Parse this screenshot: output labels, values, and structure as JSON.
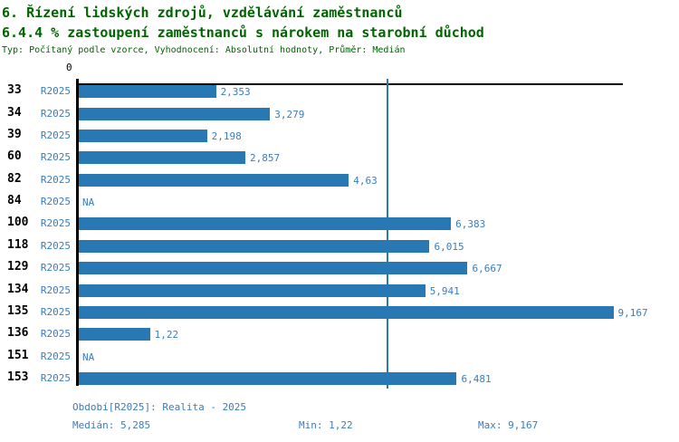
{
  "header": {
    "title1": "6. Řízení lidských zdrojů, vzdělávání zaměstnanců",
    "title2": "6.4.4 % zastoupení zaměstnanců s nárokem na starobní důchod",
    "subtitle": "Typ: Počítaný podle vzorce, Vyhodnocení: Absolutní hodnoty, Průměr: Medián"
  },
  "colors": {
    "title": "#006400",
    "blue": "#3a7cbe",
    "bar": "#2878b4",
    "axis": "#000000"
  },
  "axis": {
    "zero_label": "0"
  },
  "chart_data": {
    "type": "bar",
    "orientation": "horizontal",
    "title": "6.4.4 % zastoupení zaměstnanců s nárokem na starobní důchod",
    "xlabel": "",
    "ylabel": "",
    "xlim": [
      0,
      9.33
    ],
    "grid": false,
    "legend": false,
    "categories": [
      "33",
      "34",
      "39",
      "60",
      "82",
      "84",
      "100",
      "118",
      "129",
      "134",
      "135",
      "136",
      "151",
      "153"
    ],
    "series": [
      {
        "name": "R2025",
        "values": [
          2.353,
          3.279,
          2.198,
          2.857,
          4.63,
          null,
          6.383,
          6.015,
          6.667,
          5.941,
          9.167,
          1.22,
          null,
          6.481
        ]
      }
    ],
    "rows": [
      {
        "id": "33",
        "period": "R2025",
        "value": 2.353,
        "label": "2,353"
      },
      {
        "id": "34",
        "period": "R2025",
        "value": 3.279,
        "label": "3,279"
      },
      {
        "id": "39",
        "period": "R2025",
        "value": 2.198,
        "label": "2,198"
      },
      {
        "id": "60",
        "period": "R2025",
        "value": 2.857,
        "label": "2,857"
      },
      {
        "id": "82",
        "period": "R2025",
        "value": 4.63,
        "label": "4,63"
      },
      {
        "id": "84",
        "period": "R2025",
        "value": null,
        "label": "NA"
      },
      {
        "id": "100",
        "period": "R2025",
        "value": 6.383,
        "label": "6,383"
      },
      {
        "id": "118",
        "period": "R2025",
        "value": 6.015,
        "label": "6,015"
      },
      {
        "id": "129",
        "period": "R2025",
        "value": 6.667,
        "label": "6,667"
      },
      {
        "id": "134",
        "period": "R2025",
        "value": 5.941,
        "label": "5,941"
      },
      {
        "id": "135",
        "period": "R2025",
        "value": 9.167,
        "label": "9,167"
      },
      {
        "id": "136",
        "period": "R2025",
        "value": 1.22,
        "label": "1,22"
      },
      {
        "id": "151",
        "period": "R2025",
        "value": null,
        "label": "NA"
      },
      {
        "id": "153",
        "period": "R2025",
        "value": 6.481,
        "label": "6,481"
      }
    ],
    "stats": {
      "median": 5.285,
      "min": 1.22,
      "max": 9.167
    }
  },
  "footer": {
    "period": "Období[R2025]: Realita - 2025",
    "median": "Medián: 5,285",
    "min": "Min: 1,22",
    "max": "Max: 9,167"
  }
}
